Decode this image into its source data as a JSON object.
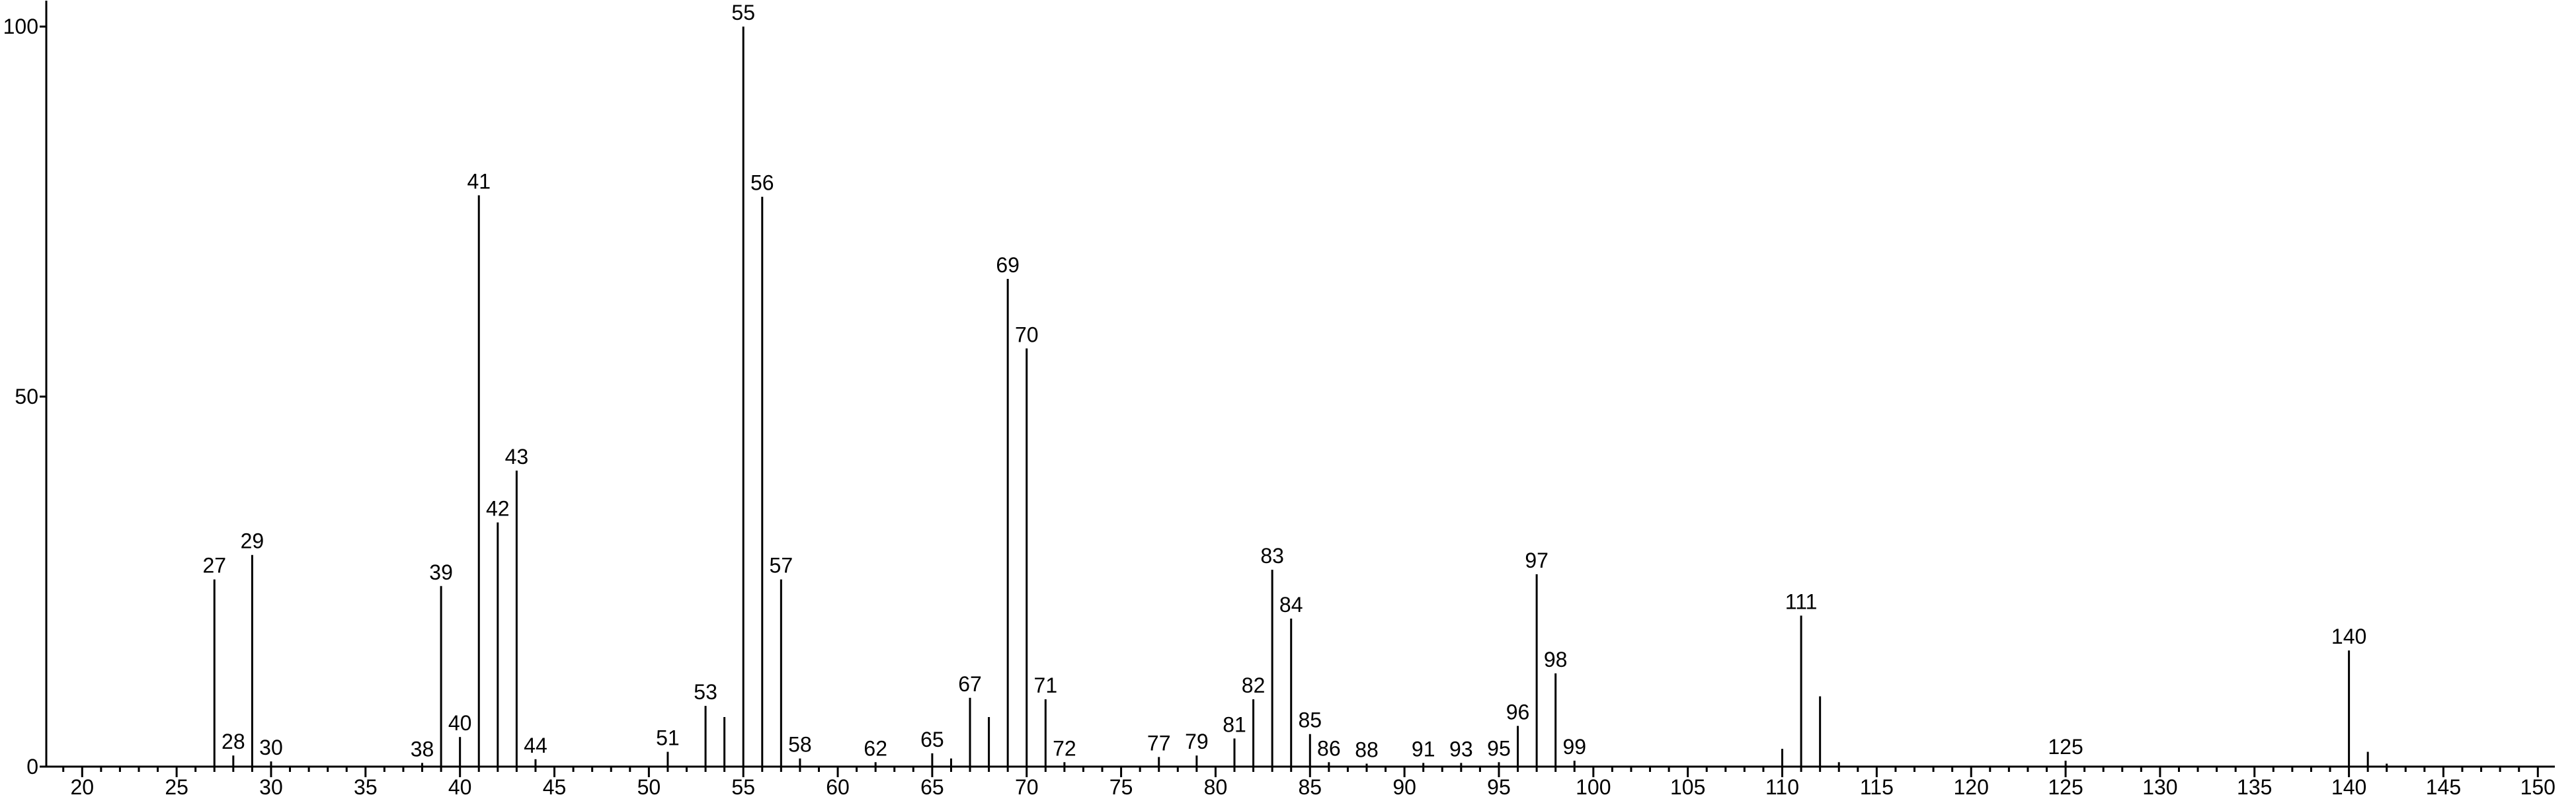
{
  "chart_data": {
    "type": "stem",
    "x": [
      27,
      28,
      29,
      30,
      38,
      39,
      40,
      41,
      42,
      43,
      44,
      51,
      53,
      54,
      55,
      56,
      57,
      58,
      62,
      65,
      66,
      67,
      68,
      69,
      70,
      71,
      72,
      77,
      79,
      81,
      82,
      83,
      84,
      85,
      86,
      88,
      91,
      93,
      95,
      96,
      97,
      98,
      99,
      110,
      111,
      112,
      113,
      125,
      140,
      141,
      142
    ],
    "values": [
      25.3,
      1.5,
      28.6,
      0.7,
      0.5,
      24.4,
      4,
      77.2,
      33,
      40,
      1,
      2,
      8.2,
      6.7,
      100,
      77,
      25.3,
      1.1,
      0.6,
      1.8,
      1.1,
      9.3,
      6.7,
      65.9,
      56.5,
      9.1,
      0.6,
      1.3,
      1.5,
      3.8,
      9.1,
      26.6,
      20,
      4.4,
      0.6,
      0.4,
      0.5,
      0.5,
      0.6,
      5.5,
      26,
      12.6,
      0.8,
      2.4,
      20.4,
      9.5,
      0.6,
      0.8,
      15.7,
      2,
      0.4
    ],
    "peak_labels": [
      "27",
      "28",
      "29",
      "30",
      "38",
      "39",
      "40",
      "41",
      "42",
      "43",
      "44",
      "51",
      "53",
      null,
      "55",
      "56",
      "57",
      "58",
      "62",
      "65",
      null,
      "67",
      null,
      "69",
      "70",
      "71",
      "72",
      "77",
      "79",
      "81",
      "82",
      "83",
      "84",
      "85",
      "86",
      "88",
      "91",
      "93",
      "95",
      "96",
      "97",
      "98",
      "99",
      null,
      "111",
      null,
      null,
      "125",
      "140",
      null,
      null
    ],
    "color": "#000000",
    "xlim": [
      18.1,
      150.9
    ],
    "xticks": [
      20,
      25,
      30,
      35,
      40,
      45,
      50,
      55,
      60,
      65,
      70,
      75,
      80,
      85,
      90,
      95,
      100,
      105,
      110,
      115,
      120,
      125,
      130,
      135,
      140,
      145,
      150
    ],
    "xminor_ticks": [
      19,
      21,
      22,
      23,
      24,
      26,
      27,
      28,
      29,
      31,
      32,
      33,
      34,
      36,
      37,
      38,
      39,
      41,
      42,
      43,
      44,
      46,
      47,
      48,
      49,
      51,
      52,
      53,
      54,
      56,
      57,
      58,
      59,
      61,
      62,
      63,
      64,
      66,
      67,
      68,
      69,
      71,
      72,
      73,
      74,
      76,
      77,
      78,
      79,
      81,
      82,
      83,
      84,
      86,
      87,
      88,
      89,
      91,
      92,
      93,
      94,
      96,
      97,
      98,
      99,
      101,
      102,
      103,
      104,
      106,
      107,
      108,
      109,
      111,
      112,
      113,
      114,
      116,
      117,
      118,
      119,
      121,
      122,
      123,
      124,
      126,
      127,
      128,
      129,
      131,
      132,
      133,
      134,
      136,
      137,
      138,
      139,
      141,
      142,
      143,
      144,
      146,
      147,
      148,
      149
    ],
    "ylim": [
      0,
      103.5
    ],
    "yticks": [
      0,
      50,
      100
    ]
  }
}
